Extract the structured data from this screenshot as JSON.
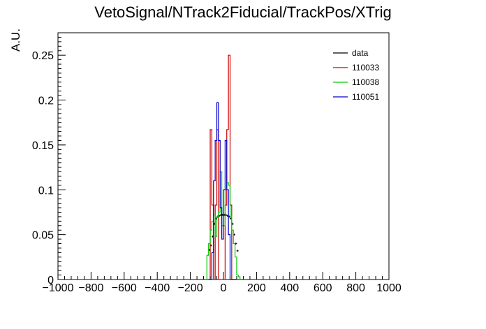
{
  "chart_data": {
    "type": "line",
    "style": "step-histogram",
    "title": "VetoSignal/NTrack2Fiducial/TrackPos/XTrig",
    "xlabel": "",
    "ylabel": "A.U.",
    "xlim": [
      -1000,
      1000
    ],
    "ylim": [
      0,
      0.275
    ],
    "x_ticks": [
      -1000,
      -800,
      -600,
      -400,
      -200,
      0,
      200,
      400,
      600,
      800,
      1000
    ],
    "y_ticks": [
      0,
      0.05,
      0.1,
      0.15,
      0.2,
      0.25
    ],
    "x_tick_labels": [
      "−1000",
      "−800",
      "−600",
      "−400",
      "−200",
      "0",
      "200",
      "400",
      "600",
      "800",
      "1000"
    ],
    "y_tick_labels": [
      "0",
      "0.05",
      "0.1",
      "0.15",
      "0.2",
      "0.25"
    ],
    "legend_position": "top-right",
    "legend": [
      "data",
      "110033",
      "110038",
      "110051"
    ],
    "bin_width": 10,
    "series": [
      {
        "name": "data",
        "color": "#000000",
        "kind": "points",
        "x": [
          -85,
          -75,
          -65,
          -55,
          -45,
          -35,
          -25,
          -15,
          -5,
          5,
          15,
          25,
          35,
          45,
          55,
          65,
          75,
          85
        ],
        "values": [
          0.033,
          0.038,
          0.048,
          0.062,
          0.068,
          0.07,
          0.071,
          0.072,
          0.072,
          0.072,
          0.072,
          0.071,
          0.07,
          0.068,
          0.062,
          0.05,
          0.04,
          0.032
        ]
      },
      {
        "name": "110033",
        "color": "#cc0000",
        "kind": "step",
        "x": [
          -85,
          -75,
          -65,
          -55,
          -45,
          -35,
          -25,
          -15,
          -5,
          5,
          15,
          25,
          35,
          45,
          55,
          65,
          75,
          85
        ],
        "values": [
          0,
          0.167,
          0.083,
          0,
          0.083,
          0.167,
          0,
          0,
          0,
          0,
          0.083,
          0.167,
          0.25,
          0.083,
          0,
          0,
          0,
          0
        ]
      },
      {
        "name": "110038",
        "color": "#00cc00",
        "kind": "step",
        "x": [
          -95,
          -85,
          -75,
          -65,
          -55,
          -45,
          -35,
          -25,
          -15,
          -5,
          5,
          15,
          25,
          35,
          45,
          55,
          65,
          75,
          85,
          95
        ],
        "values": [
          0.027,
          0.04,
          0.055,
          0.065,
          0.072,
          0.048,
          0.07,
          0.075,
          0.12,
          0.06,
          0.06,
          0.1,
          0.108,
          0.105,
          0.07,
          0.055,
          0.04,
          0.025,
          0.005,
          0.003
        ]
      },
      {
        "name": "110051",
        "color": "#0000cc",
        "kind": "step",
        "x": [
          -85,
          -75,
          -65,
          -55,
          -45,
          -35,
          -25,
          -15,
          -5,
          5,
          15,
          25,
          35,
          45,
          55,
          65,
          75
        ],
        "values": [
          0,
          0,
          0.03,
          0.11,
          0.155,
          0.197,
          0.155,
          0.08,
          0.045,
          0.1,
          0.155,
          0.1,
          0.05,
          0,
          0,
          0,
          0
        ]
      }
    ]
  }
}
